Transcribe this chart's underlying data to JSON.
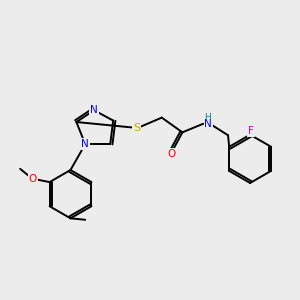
{
  "background_color": "#ececec",
  "bond_color": "#000000",
  "atom_colors": {
    "N": "#0000ff",
    "O": "#ff0000",
    "S": "#ccaa00",
    "F": "#cc00cc",
    "H": "#008080",
    "C": "#000000"
  },
  "lw": 1.4
}
